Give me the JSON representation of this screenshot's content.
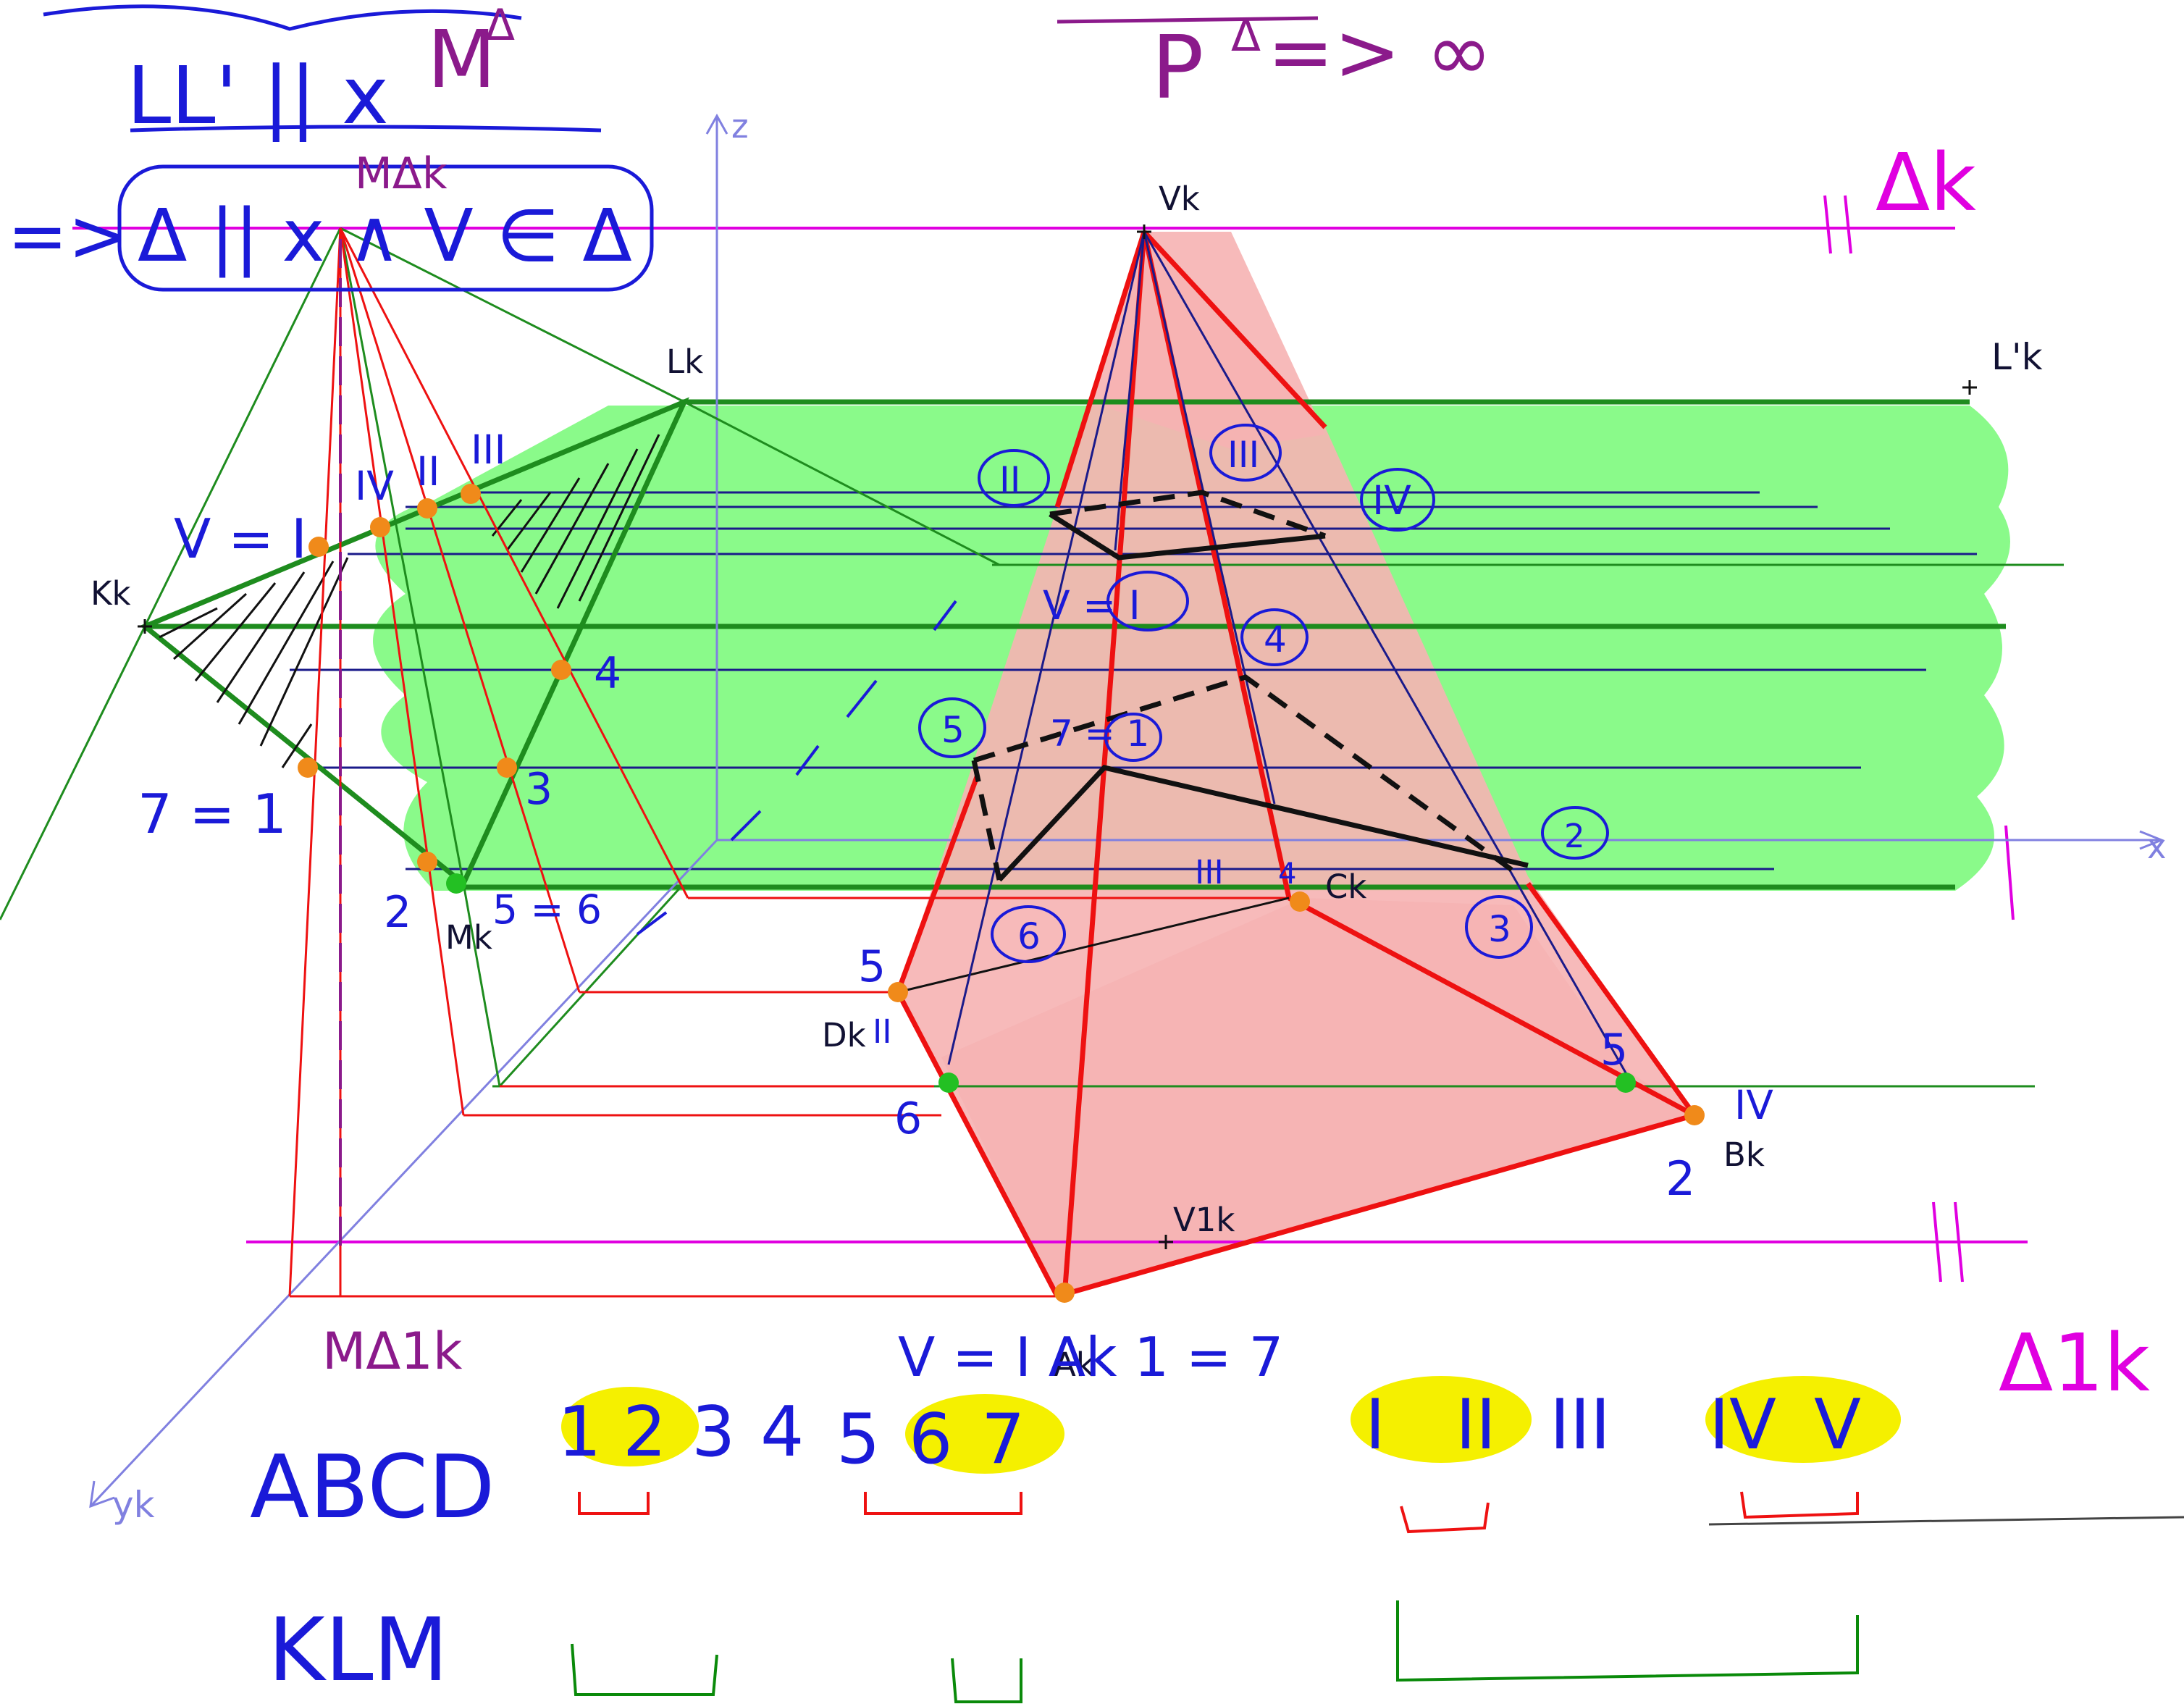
{
  "notes": {
    "top_left_1": "LL' || x",
    "top_left_arrow_target": "M",
    "top_left_superscript": "Δ",
    "boxed_statement": "Δ || x ∧ V ∈ Δ",
    "implies": "=>",
    "top_center": "P",
    "top_center_superscript": "Δ",
    "top_center_limit": "=> ∞"
  },
  "axes": {
    "z": "z",
    "x": "x",
    "y": "yk"
  },
  "planes": {
    "delta": "Δk",
    "delta_1": "Δ1k"
  },
  "point_labels": {
    "Vk": "Vk",
    "V1k": "V1k",
    "Lk": "Lk",
    "Lk_prime": "L'k",
    "Kk": "Kk",
    "Mk": "Mk",
    "Mk_delta": "MΔk",
    "M1k_delta": "MΔ1k",
    "Ck": "Ck",
    "Bk": "Bk",
    "Dk": "Dk",
    "Ak": "Ak"
  },
  "left_annotations": {
    "v_eq_i": "V = I",
    "seven_eq_one": "7 = 1",
    "five_eq_six": "5 = 6",
    "roman_iv": "IV",
    "roman_ii": "II",
    "roman_iii": "III",
    "num_4": "4",
    "num_3": "3",
    "num_2": "2"
  },
  "pyramid_annotations": {
    "circled_II": "II",
    "circled_III": "III",
    "circled_IV": "IV",
    "circled_V_I": "V = I",
    "circled_4": "4",
    "circled_5": "5",
    "circled_7_1": "7 = 1",
    "circled_2": "2",
    "circled_6": "6",
    "circled_3": "3",
    "label_III_base": "III",
    "label_4_base": "4",
    "label_5_left": "5",
    "label_II_left": "II",
    "label_6_left": "6",
    "label_5_right": "5",
    "label_IV_right": "IV",
    "label_2_right": "2",
    "bottom_eq": "V = I Ak 1 = 7"
  },
  "legend": {
    "abcd": "ABCD",
    "klm": "KLM",
    "numbers": [
      "1",
      "2",
      "3",
      "4",
      "5",
      "6",
      "7"
    ],
    "numbers_highlighted": [
      "1",
      "2",
      "6",
      "7"
    ],
    "romans": [
      "I",
      "II",
      "III",
      "IV",
      "V"
    ],
    "romans_highlighted": [
      "I",
      "II",
      "IV",
      "V"
    ]
  },
  "colors": {
    "ink_blue": "#1a1ad8",
    "plane_magenta": "#e000e0",
    "pyramid_red": "#ee1111",
    "pyramid_fill": "#f6b3b3",
    "prism_green": "#1e8c1e",
    "plane_fill_green": "#7dfa7d",
    "highlight_yellow": "#f5f000",
    "point_orange": "#f08a1a",
    "axis_lavender": "#8080e0"
  }
}
